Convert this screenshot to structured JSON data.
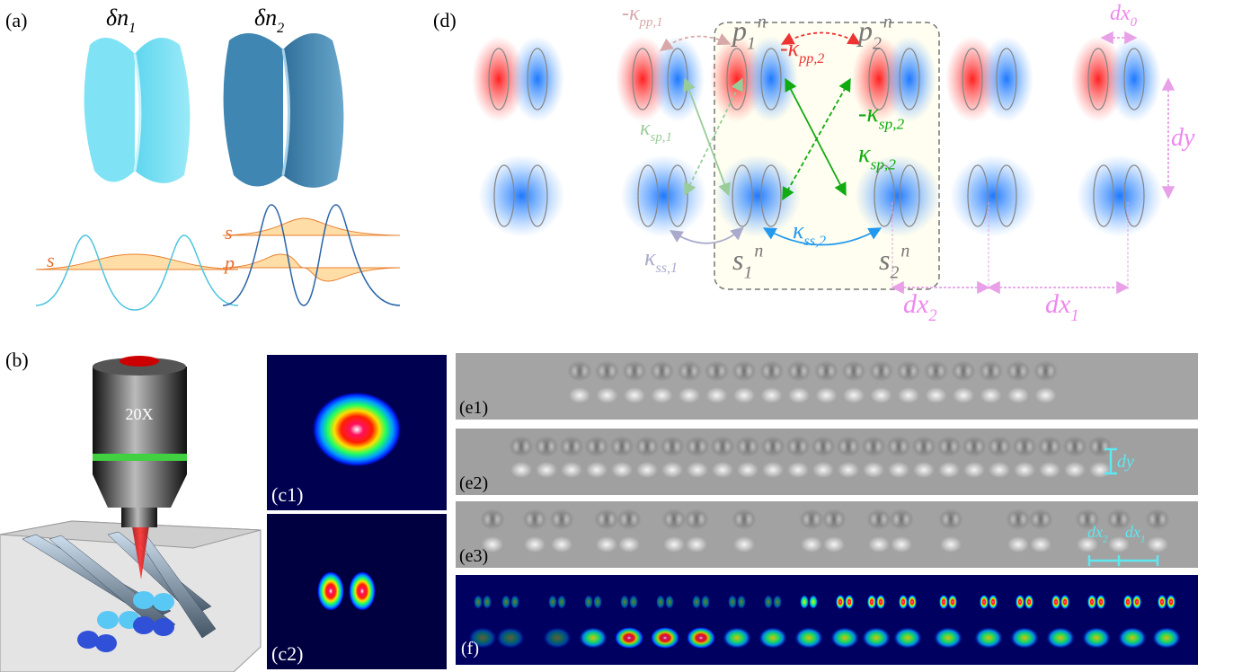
{
  "panels": {
    "a": "(a)",
    "b": "(b)",
    "c1": "(c1)",
    "c2": "(c2)",
    "d": "(d)",
    "e1": "(e1)",
    "e2": "(e2)",
    "e3": "(e3)",
    "f": "(f)"
  },
  "panel_a": {
    "lens_labels": [
      {
        "base": "δn",
        "sub": "1"
      },
      {
        "base": "δn",
        "sub": "2"
      }
    ],
    "mode_labels": [
      "s",
      "s",
      "p"
    ]
  },
  "panel_b": {
    "objective": "20X"
  },
  "panel_d": {
    "labels": [
      {
        "base": "-κ",
        "sub": "pp,1"
      },
      {
        "base": "p",
        "sub": "1",
        "sup": "n"
      },
      {
        "base": "-κ",
        "sub": "pp,2"
      },
      {
        "base": "p",
        "sub": "2",
        "sup": "n"
      },
      {
        "base": "dx",
        "sub": "0"
      },
      {
        "base": "κ",
        "sub": "sp,1"
      },
      {
        "base": "-κ",
        "sub": "sp,2"
      },
      {
        "base": "κ",
        "sub": "sp,2"
      },
      {
        "base": "dy"
      },
      {
        "base": "κ",
        "sub": "ss,1"
      },
      {
        "base": "s",
        "sub": "1",
        "sup": "n"
      },
      {
        "base": "κ",
        "sub": "ss,2"
      },
      {
        "base": "s",
        "sub": "2",
        "sup": "n"
      },
      {
        "base": "dx",
        "sub": "2"
      },
      {
        "base": "dx",
        "sub": "1"
      }
    ]
  },
  "panel_e": {
    "dy": {
      "base": "dy"
    },
    "dx2": {
      "base": "dx",
      "sub": "2"
    },
    "dx1": {
      "base": "dx",
      "sub": "1"
    }
  }
}
